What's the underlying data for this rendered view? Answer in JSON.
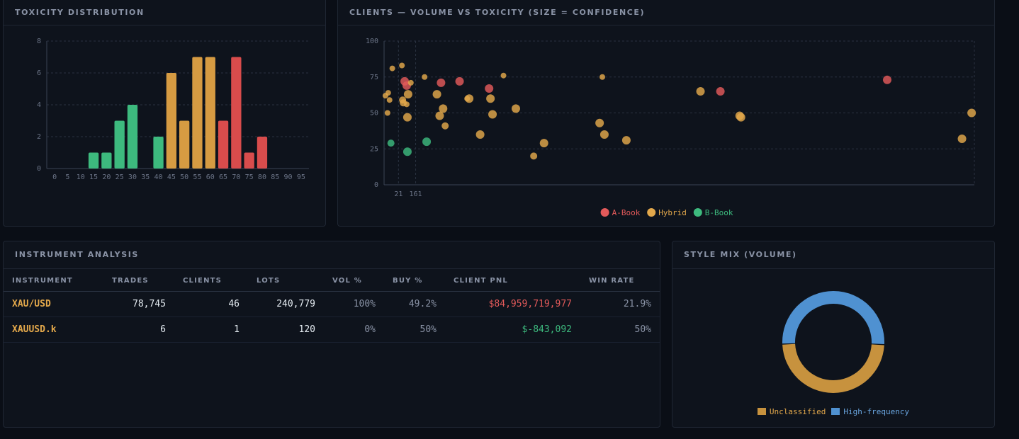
{
  "histogram": {
    "title": "TOXICITY DISTRIBUTION",
    "chart_data": {
      "type": "bar",
      "title": "TOXICITY DISTRIBUTION",
      "categories": [
        "0",
        "5",
        "10",
        "15",
        "20",
        "25",
        "30",
        "35",
        "40",
        "45",
        "50",
        "55",
        "60",
        "65",
        "70",
        "75",
        "80",
        "85",
        "90",
        "95"
      ],
      "values": [
        0,
        0,
        0,
        1,
        1,
        3,
        4,
        0,
        2,
        6,
        3,
        7,
        7,
        3,
        7,
        1,
        2,
        0,
        0,
        0
      ],
      "bar_colors": [
        "#3dba7e",
        "#3dba7e",
        "#3dba7e",
        "#3dba7e",
        "#3dba7e",
        "#3dba7e",
        "#3dba7e",
        "#3dba7e",
        "#3dba7e",
        "#d69b42",
        "#d69b42",
        "#d69b42",
        "#d69b42",
        "#d94c4c",
        "#d94c4c",
        "#d94c4c",
        "#d94c4c",
        "#d94c4c",
        "#d94c4c",
        "#d94c4c"
      ],
      "y_ticks": [
        "0",
        "2",
        "4",
        "6",
        "8"
      ],
      "ylim": [
        0,
        8
      ],
      "grid": true
    }
  },
  "scatter": {
    "title": "CLIENTS — VOLUME VS TOXICITY (SIZE = CONFIDENCE)",
    "chart_data": {
      "type": "scatter",
      "title": "CLIENTS — VOLUME VS TOXICITY (SIZE = CONFIDENCE)",
      "x_ticks": [
        "21",
        "161"
      ],
      "y_ticks": [
        "0",
        "25",
        "50",
        "75",
        "100"
      ],
      "ylim": [
        0,
        100
      ],
      "grid": true,
      "legend_position": "bottom-center",
      "series": [
        {
          "name": "A-Book",
          "color": "#e35a5a",
          "points": [
            {
              "x": 30,
              "y": 72,
              "size": 6
            },
            {
              "x": 33,
              "y": 69,
              "size": 6
            },
            {
              "x": 83,
              "y": 71,
              "size": 6
            },
            {
              "x": 110,
              "y": 72,
              "size": 6
            },
            {
              "x": 153,
              "y": 67,
              "size": 6
            },
            {
              "x": 490,
              "y": 65,
              "size": 6
            },
            {
              "x": 733,
              "y": 73,
              "size": 6
            }
          ]
        },
        {
          "name": "Hybrid",
          "color": "#e3a84b",
          "points": [
            {
              "x": 2,
              "y": 62,
              "size": 4
            },
            {
              "x": 6,
              "y": 64,
              "size": 4
            },
            {
              "x": 8,
              "y": 59,
              "size": 4
            },
            {
              "x": 5,
              "y": 50,
              "size": 4
            },
            {
              "x": 12,
              "y": 81,
              "size": 4
            },
            {
              "x": 26,
              "y": 83,
              "size": 4
            },
            {
              "x": 28,
              "y": 57,
              "size": 5
            },
            {
              "x": 27,
              "y": 59,
              "size": 5
            },
            {
              "x": 33,
              "y": 56,
              "size": 4
            },
            {
              "x": 35,
              "y": 63,
              "size": 6
            },
            {
              "x": 39,
              "y": 71,
              "size": 4
            },
            {
              "x": 34,
              "y": 47,
              "size": 6
            },
            {
              "x": 59,
              "y": 75,
              "size": 4
            },
            {
              "x": 77,
              "y": 63,
              "size": 6
            },
            {
              "x": 81,
              "y": 48,
              "size": 6
            },
            {
              "x": 86,
              "y": 53,
              "size": 6
            },
            {
              "x": 89,
              "y": 41,
              "size": 5
            },
            {
              "x": 124,
              "y": 60,
              "size": 6
            },
            {
              "x": 121,
              "y": 60,
              "size": 4
            },
            {
              "x": 140,
              "y": 35,
              "size": 6
            },
            {
              "x": 155,
              "y": 60,
              "size": 6
            },
            {
              "x": 158,
              "y": 49,
              "size": 6
            },
            {
              "x": 174,
              "y": 76,
              "size": 4
            },
            {
              "x": 192,
              "y": 53,
              "size": 6
            },
            {
              "x": 218,
              "y": 20,
              "size": 5
            },
            {
              "x": 233,
              "y": 29,
              "size": 6
            },
            {
              "x": 314,
              "y": 43,
              "size": 6
            },
            {
              "x": 318,
              "y": 75,
              "size": 4
            },
            {
              "x": 321,
              "y": 35,
              "size": 6
            },
            {
              "x": 353,
              "y": 31,
              "size": 6
            },
            {
              "x": 461,
              "y": 65,
              "size": 6
            },
            {
              "x": 518,
              "y": 48,
              "size": 6
            },
            {
              "x": 520,
              "y": 47,
              "size": 6
            },
            {
              "x": 842,
              "y": 32,
              "size": 6
            },
            {
              "x": 856,
              "y": 50,
              "size": 6
            }
          ]
        },
        {
          "name": "B-Book",
          "color": "#3dba7e",
          "points": [
            {
              "x": 10,
              "y": 29,
              "size": 5
            },
            {
              "x": 34,
              "y": 23,
              "size": 6
            },
            {
              "x": 62,
              "y": 30,
              "size": 6
            }
          ]
        }
      ]
    }
  },
  "instruments": {
    "title": "INSTRUMENT ANALYSIS",
    "columns": [
      "INSTRUMENT",
      "TRADES",
      "CLIENTS",
      "LOTS",
      "VOL %",
      "BUY %",
      "CLIENT PNL",
      "WIN RATE"
    ],
    "rows": [
      {
        "instrument": "XAU/USD",
        "trades": "78,745",
        "clients": "46",
        "lots": "240,779",
        "vol_pct": "100%",
        "buy_pct": "49.2%",
        "client_pnl": "$84,959,719,977",
        "pnl_color": "#e35a5a",
        "win_rate": "21.9%"
      },
      {
        "instrument": "XAUUSD.k",
        "trades": "6",
        "clients": "1",
        "lots": "120",
        "vol_pct": "0%",
        "buy_pct": "50%",
        "client_pnl": "$-843,092",
        "pnl_color": "#3dba7e",
        "win_rate": "50%"
      }
    ]
  },
  "style_mix": {
    "title": "STYLE MIX (VOLUME)",
    "chart_data": {
      "type": "pie",
      "title": "STYLE MIX (VOLUME)",
      "slices": [
        {
          "label": "Unclassified",
          "value": 48.5,
          "color": "#c7923e"
        },
        {
          "label": "High-frequency",
          "value": 51.5,
          "color": "#4f91d1"
        }
      ],
      "legend_position": "bottom-center"
    }
  }
}
